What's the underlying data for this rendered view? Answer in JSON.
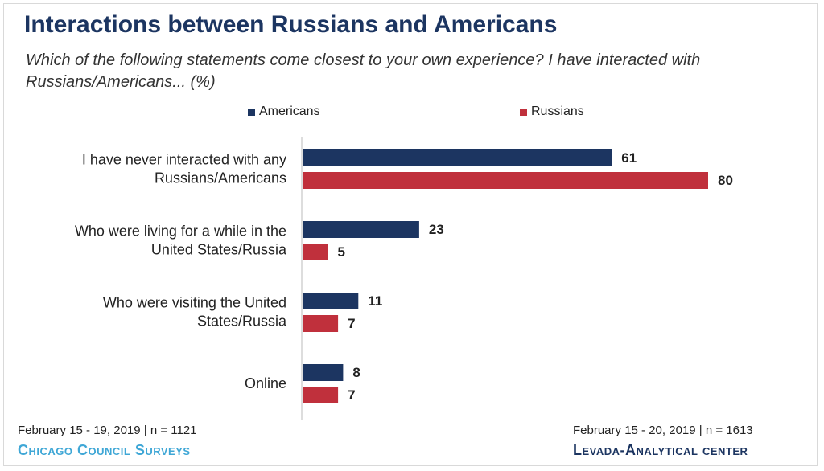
{
  "title": "Interactions between Russians and Americans",
  "subtitle": "Which of the following statements come closest to your own experience? I have interacted with Russians/Americans... (%)",
  "colors": {
    "americans": "#1c3561",
    "russians": "#c0303c",
    "axis": "#bbbbbb"
  },
  "chart_data": {
    "type": "bar",
    "orientation": "horizontal",
    "categories": [
      [
        "I have never interacted with any",
        "Russians/Americans"
      ],
      [
        "Who were living for a while in the",
        "United States/Russia"
      ],
      [
        "Who were visiting the United",
        "States/Russia"
      ],
      [
        "Online"
      ]
    ],
    "series": [
      {
        "name": "Americans",
        "color": "#1c3561",
        "values": [
          61,
          23,
          11,
          8
        ]
      },
      {
        "name": "Russians",
        "color": "#c0303c",
        "values": [
          80,
          5,
          7,
          7
        ]
      }
    ],
    "xlim": [
      0,
      100
    ],
    "grid": false,
    "legend": "top"
  },
  "footer": {
    "left_source": "February 15 - 19, 2019 | n = 1121",
    "left_brand": "Chicago Council Surveys",
    "right_source": "February 15 - 20, 2019 | n = 1613",
    "right_brand": "Levada-Analytical center"
  }
}
